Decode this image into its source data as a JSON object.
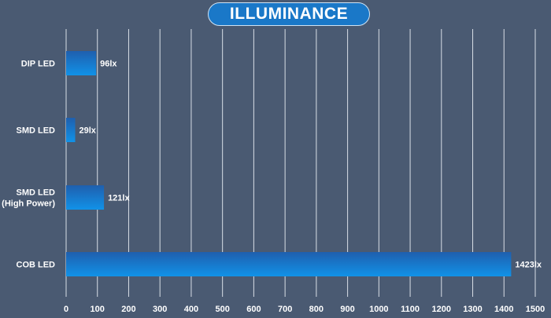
{
  "chart_data": {
    "type": "bar",
    "orientation": "horizontal",
    "title": "ILLUMINANCE",
    "categories": [
      [
        "DIP LED"
      ],
      [
        "SMD LED"
      ],
      [
        "SMD LED",
        "(High Power)"
      ],
      [
        "COB LED"
      ]
    ],
    "values": [
      96,
      29,
      121,
      1423
    ],
    "data_labels": [
      "96lx",
      "29lx",
      "121lx",
      "1423lx"
    ],
    "xlim": [
      0,
      1500
    ],
    "xticks": [
      "0",
      "100",
      "200",
      "300",
      "400",
      "500",
      "600",
      "700",
      "800",
      "900",
      "1000",
      "1100",
      "1200",
      "1300",
      "1400",
      "1500"
    ],
    "grid": "vertical",
    "colors": {
      "background": "#4a5a72",
      "bar_top": "#1f5fae",
      "bar_bottom": "#1192e8",
      "title_bg": "#1a78c8"
    }
  }
}
